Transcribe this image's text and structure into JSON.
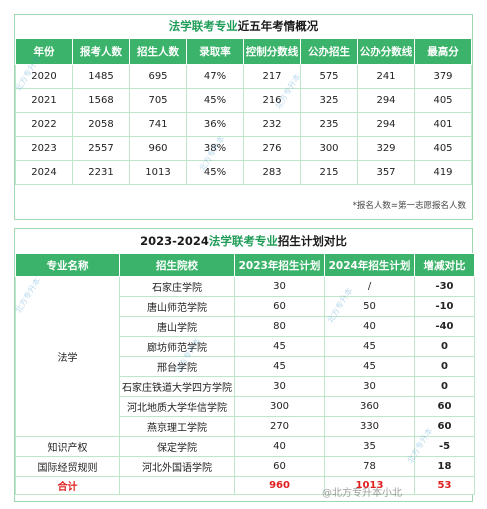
{
  "table1": {
    "title_highlight": "法学联考专业",
    "title_rest": "近五年考情概况",
    "headers": [
      "年份",
      "报考人数",
      "招生人数",
      "录取率",
      "控制分数线",
      "公办招生",
      "公办分数线",
      "最高分"
    ],
    "rows": [
      [
        "2020",
        "1485",
        "695",
        "47%",
        "217",
        "575",
        "241",
        "379"
      ],
      [
        "2021",
        "1568",
        "705",
        "45%",
        "216",
        "325",
        "294",
        "405"
      ],
      [
        "2022",
        "2058",
        "741",
        "36%",
        "232",
        "235",
        "294",
        "401"
      ],
      [
        "2023",
        "2557",
        "960",
        "38%",
        "276",
        "300",
        "329",
        "405"
      ],
      [
        "2024",
        "2231",
        "1013",
        "45%",
        "283",
        "215",
        "357",
        "419"
      ]
    ],
    "note": "*报名人数=第一志愿报名人数"
  },
  "table2": {
    "title_pre": "2023-2024",
    "title_highlight": "法学联考专业",
    "title_rest": "招生计划对比",
    "headers": [
      "专业名称",
      "招生院校",
      "2023年招生计划",
      "2024年招生计划",
      "增减对比"
    ],
    "majors": [
      "法学",
      "知识产权",
      "国际经贸规则"
    ],
    "rows": [
      [
        "石家庄学院",
        "30",
        "/",
        "-30"
      ],
      [
        "唐山师范学院",
        "60",
        "50",
        "-10"
      ],
      [
        "唐山学院",
        "80",
        "40",
        "-40"
      ],
      [
        "廊坊师范学院",
        "45",
        "45",
        "0"
      ],
      [
        "邢台学院",
        "45",
        "45",
        "0"
      ],
      [
        "石家庄铁道大学四方学院",
        "30",
        "30",
        "0"
      ],
      [
        "河北地质大学华信学院",
        "300",
        "360",
        "60"
      ],
      [
        "燕京理工学院",
        "270",
        "330",
        "60"
      ],
      [
        "保定学院",
        "40",
        "35",
        "-5"
      ],
      [
        "河北外国语学院",
        "60",
        "78",
        "18"
      ]
    ],
    "total": [
      "合计",
      "960",
      "1013",
      "53"
    ],
    "watermark": "@北方专升本小北"
  },
  "watermark_text": "北方专升本",
  "colors": {
    "header_green": "#3cb36a",
    "title_green": "#1f9c57",
    "total_red": "#e02020"
  }
}
